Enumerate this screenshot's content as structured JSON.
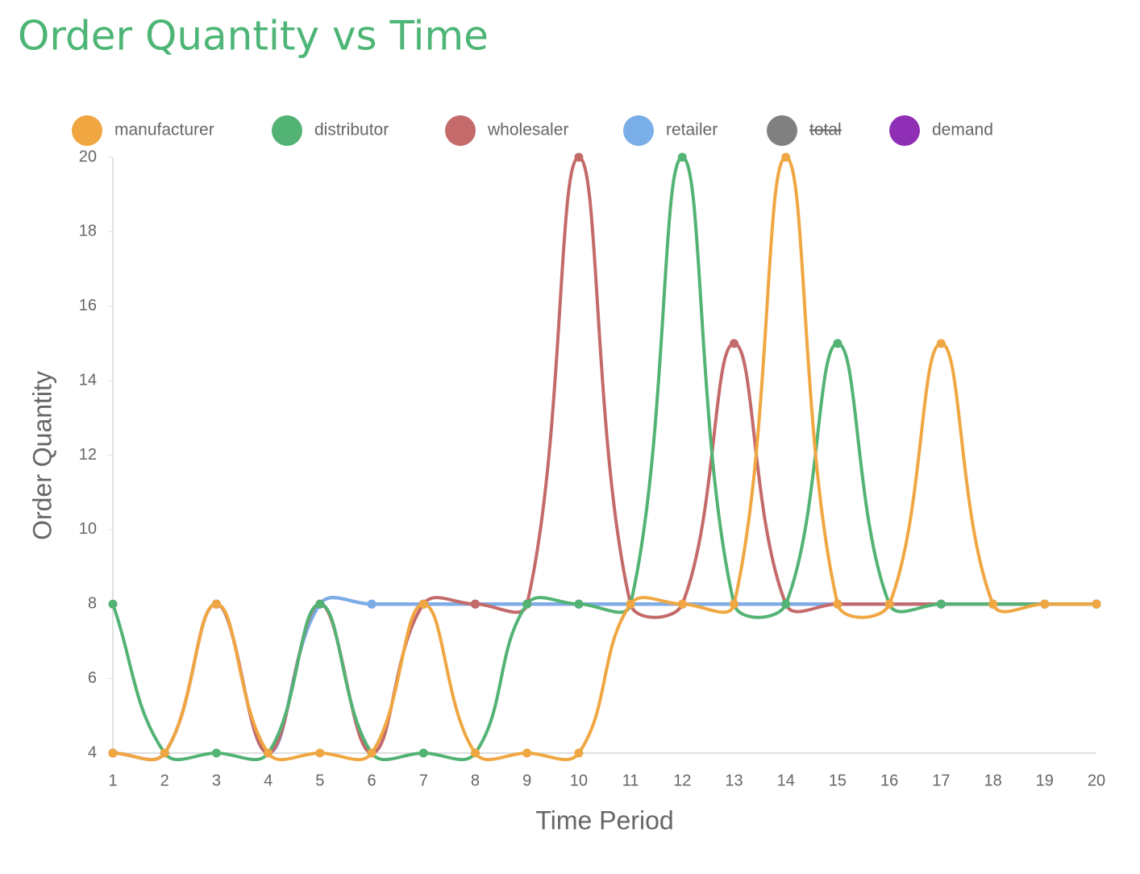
{
  "chart_data": {
    "type": "line",
    "title": "Order Quantity vs Time",
    "x_label": "Time Period",
    "y_label": "Order Quantity",
    "categories": [
      "1",
      "2",
      "3",
      "4",
      "5",
      "6",
      "7",
      "8",
      "9",
      "10",
      "11",
      "12",
      "13",
      "14",
      "15",
      "16",
      "17",
      "18",
      "19",
      "20"
    ],
    "series": [
      {
        "name": "manufacturer",
        "color": "#f0a742",
        "values": [
          4,
          4,
          8,
          4,
          4,
          4,
          8,
          4,
          4,
          4,
          8,
          8,
          8,
          20,
          8,
          8,
          15,
          8,
          8,
          8
        ]
      },
      {
        "name": "distributor",
        "color": "#53b374",
        "values": [
          8,
          4,
          4,
          4,
          8,
          4,
          4,
          4,
          8,
          8,
          8,
          20,
          8,
          8,
          15,
          8,
          8,
          8,
          8,
          8
        ]
      },
      {
        "name": "wholesaler",
        "color": "#c46a6a",
        "values": [
          4,
          4,
          8,
          4,
          8,
          4,
          8,
          8,
          8,
          20,
          8,
          8,
          15,
          8,
          8,
          8,
          8,
          8,
          8,
          8
        ]
      },
      {
        "name": "retailer",
        "color": "#7aaee8",
        "values": [
          4,
          4,
          8,
          4,
          8,
          8,
          8,
          8,
          8,
          8,
          8,
          8,
          8,
          8,
          8,
          8,
          8,
          8,
          8,
          8
        ]
      },
      {
        "name": "total",
        "color": "#808080",
        "hidden": true
      },
      {
        "name": "demand",
        "color": "#8e2fb5",
        "values": [
          4,
          4,
          8,
          4,
          8,
          8,
          8,
          8,
          8,
          8,
          8,
          8,
          8,
          8,
          8,
          8,
          8,
          8,
          8,
          8
        ]
      }
    ],
    "ylim": [
      4,
      20
    ],
    "yticks": [
      4,
      6,
      8,
      10,
      12,
      14,
      16,
      18,
      20
    ],
    "legend": "top"
  }
}
